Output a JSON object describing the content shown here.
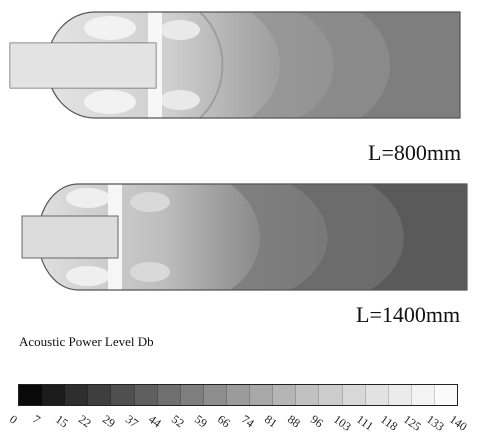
{
  "panels": [
    {
      "label": "L=800mm"
    },
    {
      "label": "L=1400mm"
    }
  ],
  "legend": {
    "title": "Acoustic Power Level Db",
    "ticks": [
      "0",
      "7",
      "15",
      "22",
      "29",
      "37",
      "44",
      "52",
      "59",
      "66",
      "74",
      "81",
      "88",
      "96",
      "103",
      "111",
      "118",
      "125",
      "133",
      "140"
    ],
    "colors": [
      "#0a0a0a",
      "#1c1c1c",
      "#2e2e2e",
      "#3e3e3e",
      "#4f4f4f",
      "#5f5f5f",
      "#6f6f6f",
      "#7e7e7e",
      "#8d8d8d",
      "#9b9b9b",
      "#a8a8a8",
      "#b5b5b5",
      "#c1c1c1",
      "#cdcdcd",
      "#d8d8d8",
      "#e2e2e2",
      "#ebebeb",
      "#f3f3f3",
      "#fafafa"
    ]
  }
}
